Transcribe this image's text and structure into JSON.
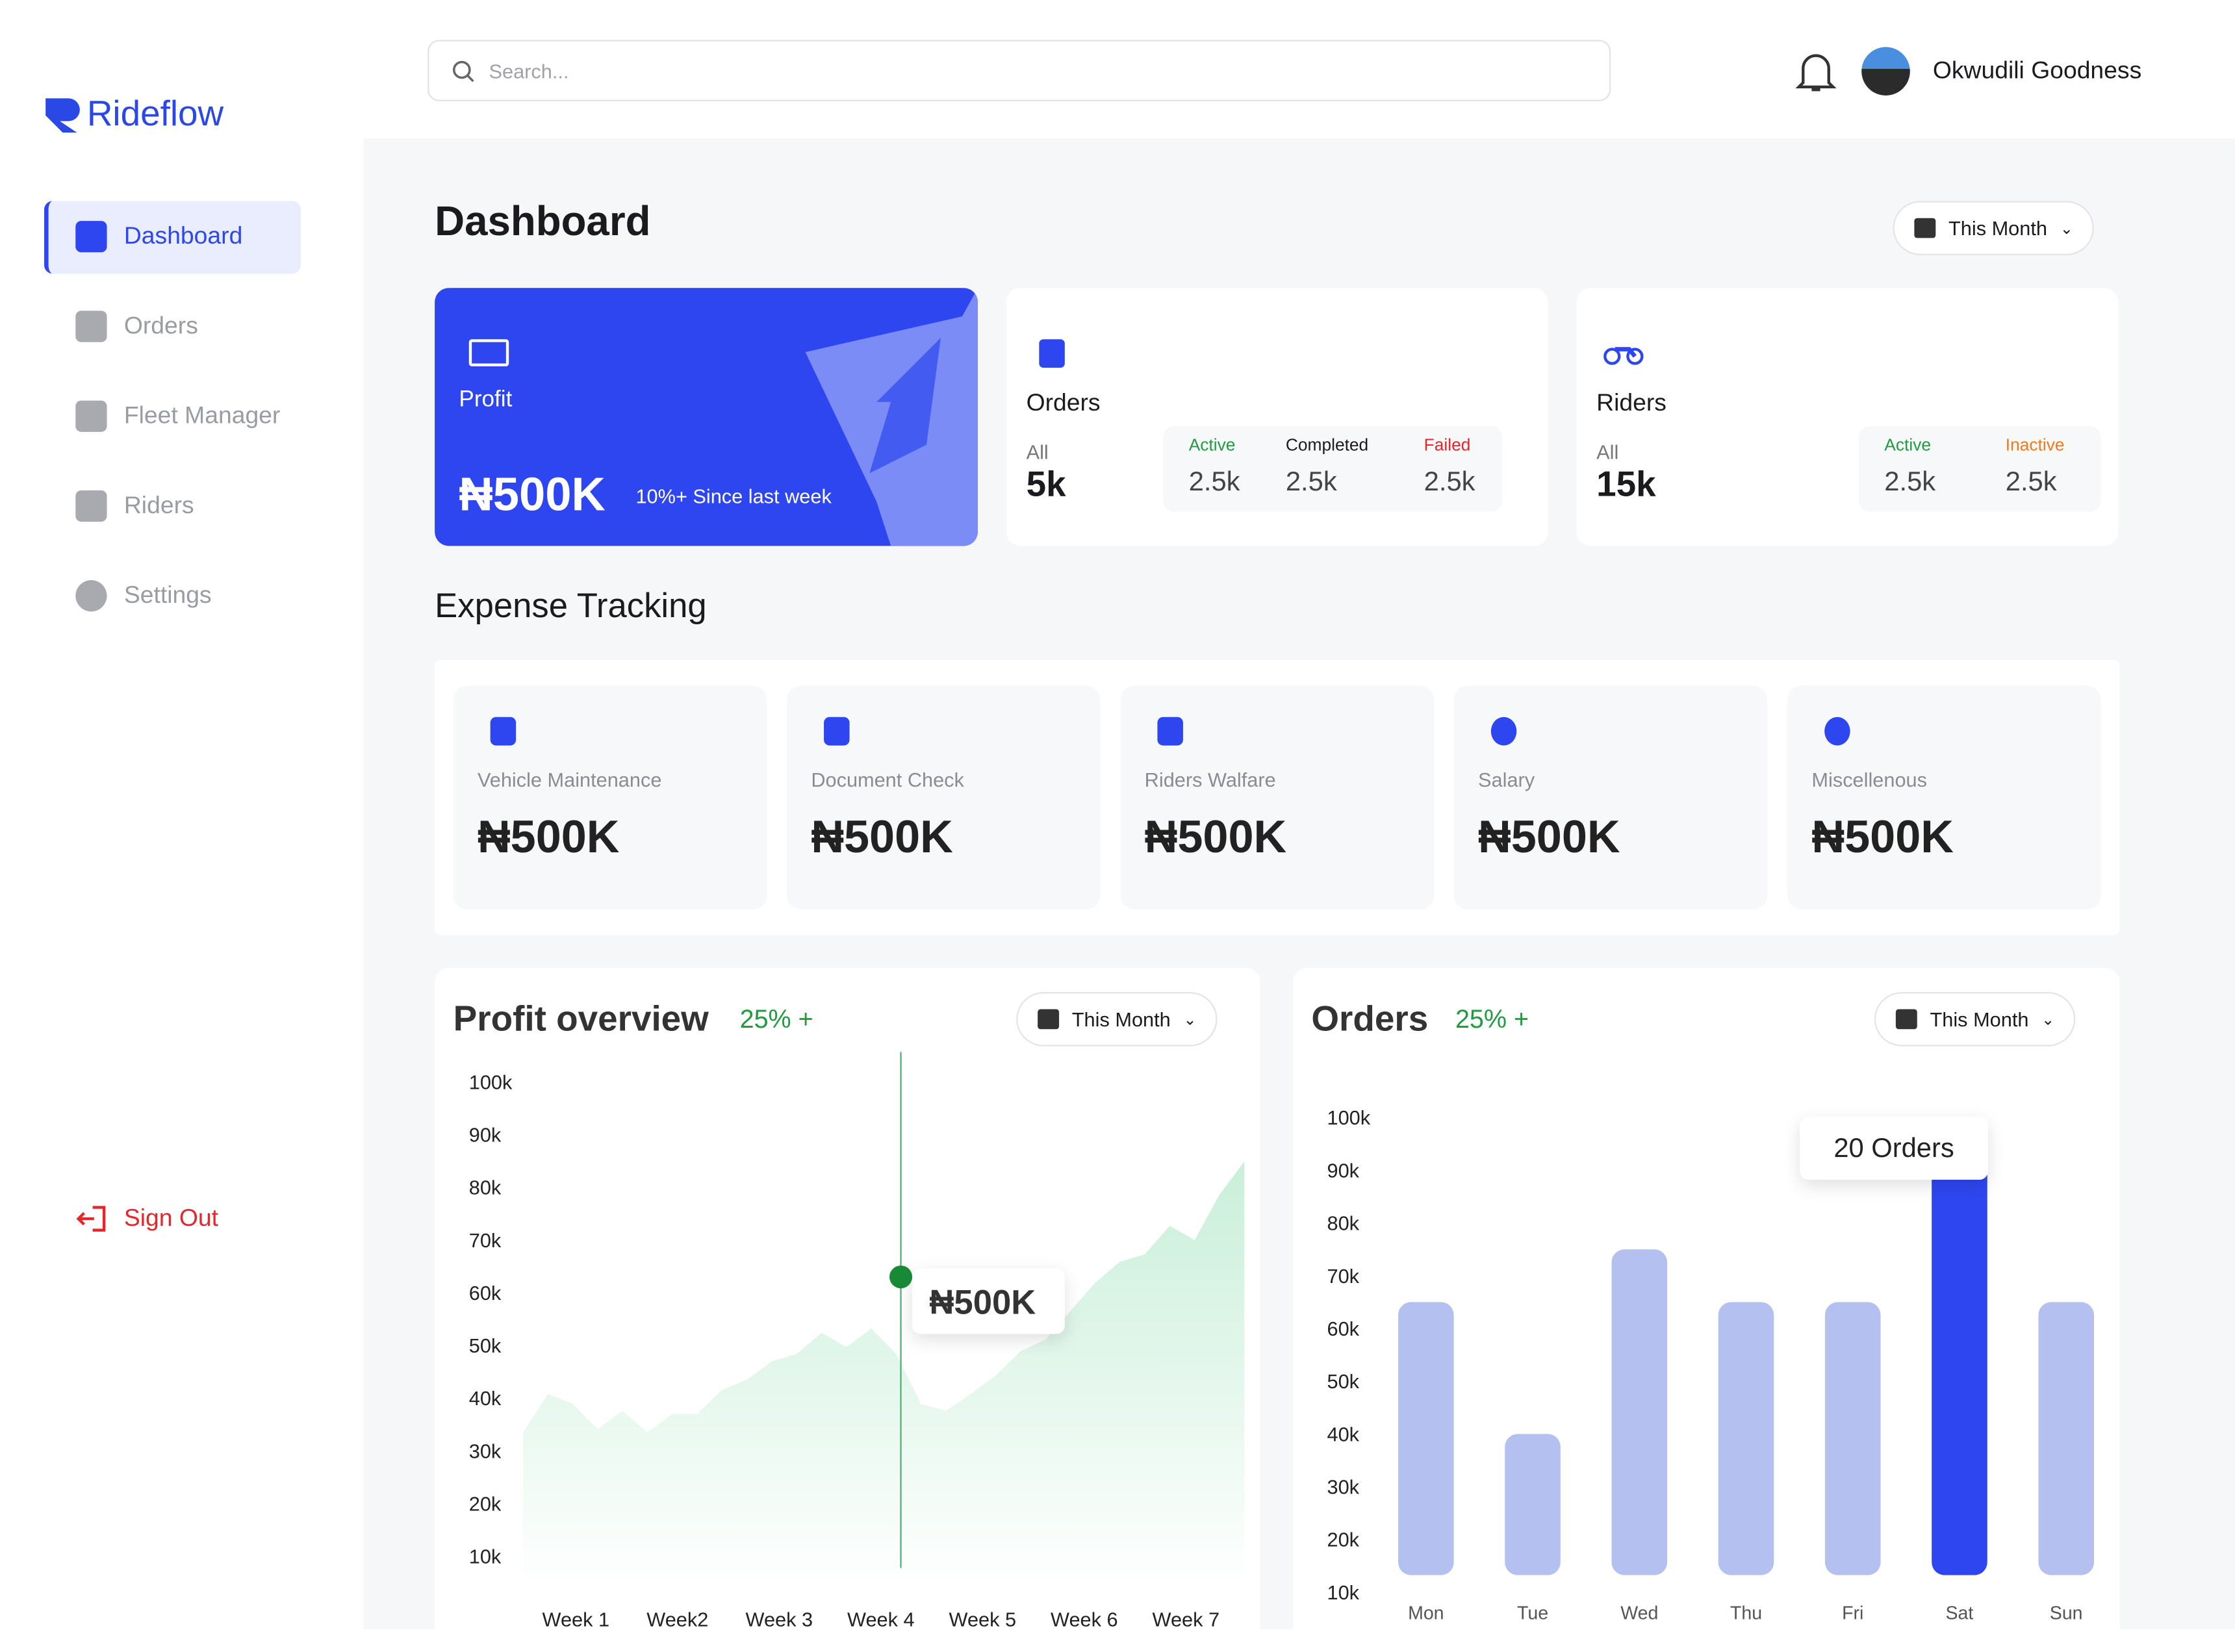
{
  "header": {
    "search_placeholder": "Search...",
    "user_name": "Okwudili Goodness"
  },
  "sidebar": {
    "brand": "Rideflow",
    "nav": [
      "Dashboard",
      "Orders",
      "Fleet Manager",
      "Riders",
      "Settings"
    ],
    "active": 0,
    "sign_out": "Sign Out"
  },
  "page": {
    "title": "Dashboard",
    "period": "This Month"
  },
  "summary": {
    "profit": {
      "label": "Profit",
      "value": "₦500K",
      "note": "10%+ Since last week"
    },
    "orders": {
      "label": "Orders",
      "all_label": "All",
      "all": "5k",
      "stats": [
        {
          "label": "Active",
          "value": "2.5k"
        },
        {
          "label": "Completed",
          "value": "2.5k"
        },
        {
          "label": "Failed",
          "value": "2.5k"
        }
      ]
    },
    "riders": {
      "label": "Riders",
      "all_label": "All",
      "all": "15k",
      "stats": [
        {
          "label": "Active",
          "value": "2.5k"
        },
        {
          "label": "Inactive",
          "value": "2.5k"
        }
      ]
    }
  },
  "expenses": {
    "title": "Expense Tracking",
    "items": [
      {
        "label": "Vehicle Maintenance",
        "value": "₦500K"
      },
      {
        "label": "Document Check",
        "value": "₦500K"
      },
      {
        "label": "Riders Walfare",
        "value": "₦500K"
      },
      {
        "label": "Salary",
        "value": "₦500K"
      },
      {
        "label": "Miscellenous",
        "value": "₦500K"
      }
    ]
  },
  "profit_chart": {
    "type": "area",
    "title": "Profit overview",
    "change": "25% +",
    "period": "This Month",
    "color": "#c9efd9",
    "values": [
      33500,
      40800,
      38900,
      34100,
      37600,
      33500,
      37000,
      37000,
      41600,
      43500,
      47000,
      48400,
      52400,
      49700,
      53200,
      48400,
      38900,
      37600,
      40800,
      44300,
      48900,
      51100,
      56500,
      61900,
      65900,
      67300,
      72700,
      70000,
      78600,
      84900
    ],
    "xtick_labels": [
      "Week 1",
      "Week2",
      "Week 3",
      "Week 4",
      "Week 5",
      "Week 6",
      "Week 7"
    ],
    "ylim": [
      4000,
      100000
    ],
    "yticks": [
      {
        "value": 10000,
        "label": "10k"
      },
      {
        "value": 20000,
        "label": "20k"
      },
      {
        "value": 30000,
        "label": "30k"
      },
      {
        "value": 40000,
        "label": "40k"
      },
      {
        "value": 50000,
        "label": "50k"
      },
      {
        "value": 60000,
        "label": "60k"
      },
      {
        "value": 70000,
        "label": "70k"
      },
      {
        "value": 80000,
        "label": "80k"
      },
      {
        "value": 90000,
        "label": "90k"
      },
      {
        "value": 100000,
        "label": "100k"
      }
    ],
    "marker": {
      "value": 63000,
      "label": "₦500K"
    }
  },
  "orders_chart": {
    "type": "bar",
    "title": "Orders",
    "change": "25% +",
    "period": "This Month",
    "categories": [
      "Mon",
      "Tue",
      "Wed",
      "Thu",
      "Fri",
      "Sat",
      "Sun"
    ],
    "values": [
      65000,
      40000,
      75000,
      65000,
      65000,
      92000,
      65000
    ],
    "color": "#b4c0f0",
    "highlight_color": "#2d46f0",
    "highlight": 5,
    "tooltip": "20 Orders",
    "ylim": [
      10000,
      100000
    ],
    "yticks": [
      {
        "value": 10000,
        "label": "10k"
      },
      {
        "value": 20000,
        "label": "20k"
      },
      {
        "value": 30000,
        "label": "30k"
      },
      {
        "value": 40000,
        "label": "40k"
      },
      {
        "value": 50000,
        "label": "50k"
      },
      {
        "value": 60000,
        "label": "60k"
      },
      {
        "value": 70000,
        "label": "70k"
      },
      {
        "value": 80000,
        "label": "80k"
      },
      {
        "value": 90000,
        "label": "90k"
      },
      {
        "value": 100000,
        "label": "100k"
      }
    ]
  }
}
